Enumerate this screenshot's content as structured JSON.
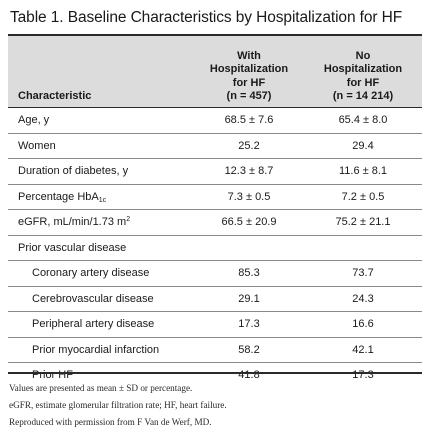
{
  "title": {
    "number": "Table 1.",
    "text": "Baseline Characteristics by Hospitalization for HF"
  },
  "header": {
    "characteristic": "Characteristic",
    "col1": [
      "With",
      "Hospitalization",
      "for HF",
      "(n = 457)"
    ],
    "col2": [
      "No",
      "Hospitalization",
      "for HF",
      "(n = 14 214)"
    ]
  },
  "rows": [
    {
      "label": "Age, y",
      "v1": "68.5 ± 7.6",
      "v2": "65.4 ± 8.0",
      "indent": false
    },
    {
      "label": "Women",
      "v1": "25.2",
      "v2": "29.4",
      "indent": false
    },
    {
      "label": "Duration of diabetes, y",
      "v1": "12.3 ± 8.7",
      "v2": "11.6 ± 8.1",
      "indent": false
    },
    {
      "label": "Percentage HbA",
      "label_sub": "1c",
      "v1": "7.3 ± 0.5",
      "v2": "7.2 ± 0.5",
      "indent": false
    },
    {
      "label": "eGFR, mL/min/1.73 m",
      "label_sup": "2",
      "v1": "66.5 ± 20.9",
      "v2": "75.2 ± 21.1",
      "indent": false
    },
    {
      "label": "Prior vascular disease",
      "v1": "",
      "v2": "",
      "indent": false
    },
    {
      "label": "Coronary artery disease",
      "v1": "85.3",
      "v2": "73.7",
      "indent": true
    },
    {
      "label": "Cerebrovascular disease",
      "v1": "29.1",
      "v2": "24.3",
      "indent": true
    },
    {
      "label": "Peripheral artery disease",
      "v1": "17.3",
      "v2": "16.6",
      "indent": true
    },
    {
      "label": "Prior myocardial infarction",
      "v1": "58.2",
      "v2": "42.1",
      "indent": true
    },
    {
      "label": "Prior HF",
      "v1": "41.8",
      "v2": "17.3",
      "indent": true
    }
  ],
  "notes": [
    "Values are presented as mean ± SD or percentage.",
    "eGFR, estimate glomerular filtration rate; HF, heart failure.",
    "Reproduced with permission from F Van de Werf, MD."
  ]
}
